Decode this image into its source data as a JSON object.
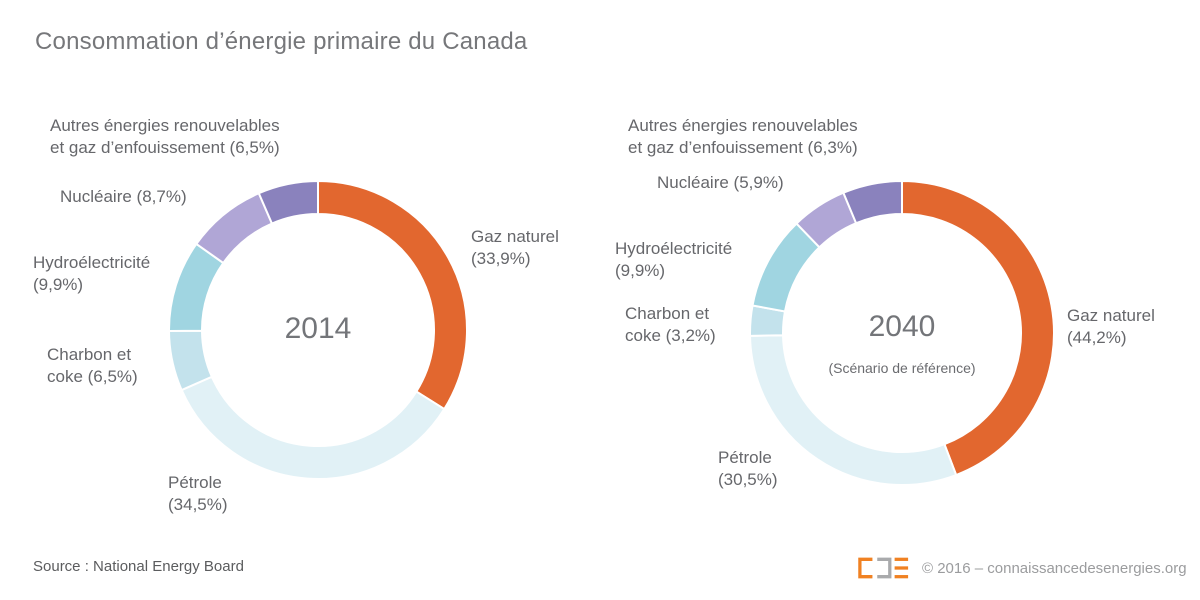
{
  "title": "Consommation d’énergie primaire du Canada",
  "charts": [
    {
      "year": "2014",
      "subtitle": "",
      "labels": {
        "autres": {
          "line1": "Autres énergies renouvelables",
          "line2": "et gaz d’enfouissement (6,5%)"
        },
        "nucleaire": {
          "line1": "Nucléaire (8,7%)"
        },
        "hydro": {
          "line1": "Hydroélectricité",
          "line2": "(9,9%)"
        },
        "charbon": {
          "line1": "Charbon et",
          "line2": "coke (6,5%)"
        },
        "petrole": {
          "line1": "Pétrole",
          "line2": "(34,5%)"
        },
        "gaz": {
          "line1": "Gaz naturel",
          "line2": "(33,9%)"
        }
      }
    },
    {
      "year": "2040",
      "subtitle": "(Scénario de référence)",
      "labels": {
        "autres": {
          "line1": "Autres énergies renouvelables",
          "line2": "et gaz d’enfouissement (6,3%)"
        },
        "nucleaire": {
          "line1": "Nucléaire (5,9%)"
        },
        "hydro": {
          "line1": "Hydroélectricité",
          "line2": "(9,9%)"
        },
        "charbon": {
          "line1": "Charbon et",
          "line2": "coke (3,2%)"
        },
        "petrole": {
          "line1": "Pétrole",
          "line2": "(30,5%)"
        },
        "gaz": {
          "line1": "Gaz naturel",
          "line2": "(44,2%)"
        }
      }
    }
  ],
  "chart_data": [
    {
      "type": "pie",
      "subtype": "donut",
      "title": "2014",
      "categories": [
        "Gaz naturel",
        "Pétrole",
        "Charbon et coke",
        "Hydroélectricité",
        "Nucléaire",
        "Autres énergies renouvelables et gaz d’enfouissement"
      ],
      "values": [
        33.9,
        34.5,
        6.5,
        9.9,
        8.7,
        6.5
      ],
      "unit": "%",
      "colors": [
        "#E2672F",
        "#E1F1F6",
        "#C3E2EC",
        "#A0D5E1",
        "#B0A6D6",
        "#8A82BD"
      ],
      "ids": [
        "gaz-naturel",
        "petrole",
        "charbon-et-coke",
        "hydroelectricite",
        "nucleaire",
        "autres-renouvelables"
      ],
      "start_angle_deg": 0,
      "direction": "clockwise",
      "legend_position": "around-labels"
    },
    {
      "type": "pie",
      "subtype": "donut",
      "title": "2040",
      "subtitle_note": "(Scénario de référence)",
      "categories": [
        "Gaz naturel",
        "Pétrole",
        "Charbon et coke",
        "Hydroélectricité",
        "Nucléaire",
        "Autres énergies renouvelables et gaz d’enfouissement"
      ],
      "values": [
        44.2,
        30.5,
        3.2,
        9.9,
        5.9,
        6.3
      ],
      "unit": "%",
      "colors": [
        "#E2672F",
        "#E1F1F6",
        "#C3E2EC",
        "#A0D5E1",
        "#B0A6D6",
        "#8A82BD"
      ],
      "ids": [
        "gaz-naturel",
        "petrole",
        "charbon-et-coke",
        "hydroelectricite",
        "nucleaire",
        "autres-renouvelables"
      ],
      "start_angle_deg": 0,
      "direction": "clockwise",
      "legend_position": "around-labels"
    }
  ],
  "footer": {
    "source": "Source : National Energy Board",
    "copyright": "© 2016 – connaissancedesenergies.org",
    "logo": "cde-logo"
  },
  "colors": {
    "accent_orange": "#E2672F",
    "logo_orange": "#F08122",
    "logo_gray": "#A9AAAC",
    "label_text": "#66676B",
    "title_text": "#76777A"
  }
}
